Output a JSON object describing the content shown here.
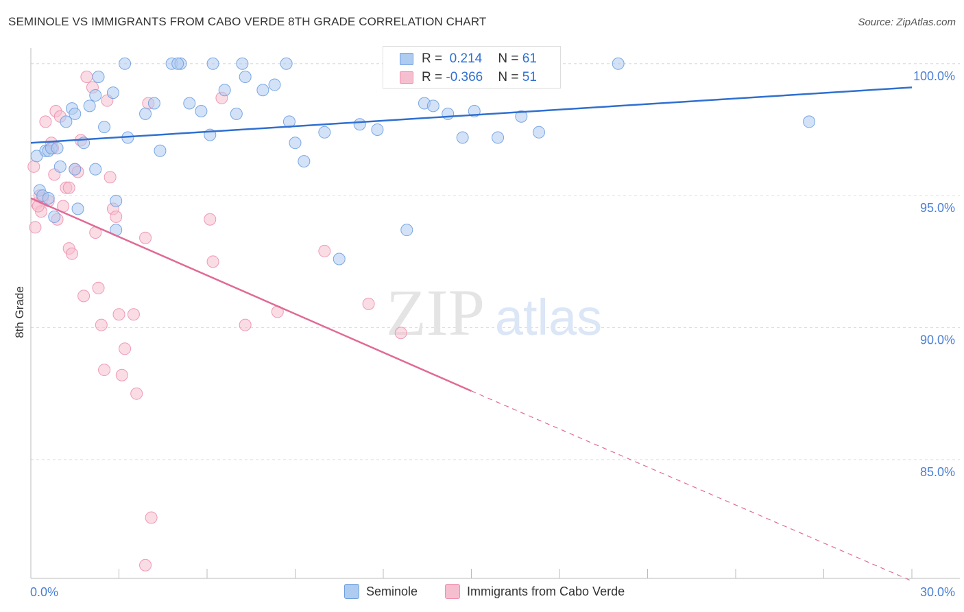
{
  "title": "SEMINOLE VS IMMIGRANTS FROM CABO VERDE 8TH GRADE CORRELATION CHART",
  "source": "Source: ZipAtlas.com",
  "watermark": {
    "zip": "ZIP",
    "atlas": "atlas"
  },
  "colors": {
    "seminole_fill": "#aecbf0",
    "seminole_stroke": "#6d9fe0",
    "seminole_line": "#2f6fd0",
    "cabo_fill": "#f6bfd0",
    "cabo_stroke": "#ee8fae",
    "cabo_line": "#e06a95",
    "axis_text": "#4a7fd4",
    "grid": "#dddddd"
  },
  "legend": {
    "rows": [
      {
        "series": "seminole",
        "r_label": "R = ",
        "r_value": " 0.214",
        "n_label": "N = ",
        "n_value": "61"
      },
      {
        "series": "cabo",
        "r_label": "R = ",
        "r_value": "-0.366",
        "n_label": "N = ",
        "n_value": "51"
      }
    ]
  },
  "chart_data": {
    "type": "scatter",
    "title": "SEMINOLE VS IMMIGRANTS FROM CABO VERDE 8TH GRADE CORRELATION CHART",
    "xlabel": "",
    "ylabel": "8th Grade",
    "xlim": [
      0,
      30
    ],
    "ylim": [
      80.5,
      100.8
    ],
    "x_tick_labels": [
      "0.0%",
      "30.0%"
    ],
    "y_ticks": [
      85,
      90,
      95,
      100
    ],
    "y_tick_labels": [
      "85.0%",
      "90.0%",
      "95.0%",
      "100.0%"
    ],
    "grid": true,
    "legend_position": "top-center",
    "series": [
      {
        "name": "Seminole",
        "trend": {
          "x": [
            0,
            30
          ],
          "y": [
            97.0,
            99.1
          ],
          "style": "solid"
        },
        "points": [
          [
            0.2,
            96.5
          ],
          [
            0.3,
            95.2
          ],
          [
            0.4,
            95.0
          ],
          [
            0.5,
            96.7
          ],
          [
            0.6,
            96.7
          ],
          [
            0.7,
            96.8
          ],
          [
            0.8,
            94.2
          ],
          [
            0.9,
            96.8
          ],
          [
            1.0,
            96.1
          ],
          [
            1.2,
            97.8
          ],
          [
            1.4,
            98.3
          ],
          [
            1.5,
            96.0
          ],
          [
            1.6,
            94.5
          ],
          [
            1.8,
            97.0
          ],
          [
            2.0,
            98.4
          ],
          [
            2.2,
            98.8
          ],
          [
            2.3,
            99.5
          ],
          [
            2.5,
            97.6
          ],
          [
            2.8,
            98.9
          ],
          [
            2.9,
            93.7
          ],
          [
            3.3,
            97.2
          ],
          [
            3.9,
            98.1
          ],
          [
            4.2,
            98.5
          ],
          [
            4.4,
            96.7
          ],
          [
            4.8,
            100.0
          ],
          [
            5.1,
            100.0
          ],
          [
            5.4,
            98.5
          ],
          [
            5.8,
            98.2
          ],
          [
            6.1,
            97.3
          ],
          [
            6.2,
            100.0
          ],
          [
            6.6,
            99.0
          ],
          [
            7.0,
            98.1
          ],
          [
            7.3,
            99.5
          ],
          [
            7.9,
            99.0
          ],
          [
            8.3,
            99.2
          ],
          [
            8.7,
            100.0
          ],
          [
            8.8,
            97.8
          ],
          [
            9.0,
            97.0
          ],
          [
            9.3,
            96.3
          ],
          [
            10.0,
            97.4
          ],
          [
            10.5,
            92.6
          ],
          [
            11.2,
            97.7
          ],
          [
            11.8,
            97.5
          ],
          [
            12.8,
            93.7
          ],
          [
            13.4,
            98.5
          ],
          [
            13.7,
            98.4
          ],
          [
            14.7,
            97.2
          ],
          [
            15.1,
            98.2
          ],
          [
            15.9,
            97.2
          ],
          [
            16.7,
            98.0
          ],
          [
            17.3,
            97.4
          ],
          [
            20.0,
            100.0
          ],
          [
            26.5,
            97.8
          ],
          [
            2.9,
            94.8
          ],
          [
            1.5,
            98.1
          ],
          [
            0.6,
            94.9
          ],
          [
            3.2,
            100.0
          ],
          [
            5.0,
            100.0
          ],
          [
            7.2,
            100.0
          ],
          [
            2.2,
            96.0
          ],
          [
            14.2,
            98.1
          ]
        ]
      },
      {
        "name": "Immigrants from Cabo Verde",
        "trend": {
          "x": [
            0,
            15,
            30
          ],
          "y": [
            94.9,
            87.6,
            80.4
          ],
          "style": "solid-then-dashed"
        },
        "points": [
          [
            0.1,
            96.1
          ],
          [
            0.15,
            93.8
          ],
          [
            0.2,
            94.7
          ],
          [
            0.3,
            95.0
          ],
          [
            0.35,
            94.4
          ],
          [
            0.4,
            94.9
          ],
          [
            0.5,
            97.8
          ],
          [
            0.6,
            94.8
          ],
          [
            0.7,
            97.0
          ],
          [
            0.75,
            96.8
          ],
          [
            0.8,
            95.8
          ],
          [
            0.85,
            98.2
          ],
          [
            0.9,
            94.1
          ],
          [
            1.0,
            98.0
          ],
          [
            1.1,
            94.6
          ],
          [
            1.2,
            95.3
          ],
          [
            1.3,
            93.0
          ],
          [
            1.4,
            92.8
          ],
          [
            1.5,
            96.0
          ],
          [
            1.6,
            95.9
          ],
          [
            1.7,
            97.1
          ],
          [
            1.8,
            91.2
          ],
          [
            1.9,
            99.5
          ],
          [
            2.1,
            99.1
          ],
          [
            2.2,
            93.6
          ],
          [
            2.3,
            91.5
          ],
          [
            2.4,
            90.1
          ],
          [
            2.5,
            88.4
          ],
          [
            2.6,
            98.6
          ],
          [
            2.7,
            95.7
          ],
          [
            2.8,
            94.5
          ],
          [
            2.9,
            94.2
          ],
          [
            3.0,
            90.5
          ],
          [
            3.1,
            88.2
          ],
          [
            3.2,
            89.2
          ],
          [
            3.5,
            90.5
          ],
          [
            3.6,
            87.5
          ],
          [
            3.9,
            81.0
          ],
          [
            3.9,
            93.4
          ],
          [
            4.0,
            98.5
          ],
          [
            4.1,
            82.8
          ],
          [
            6.1,
            94.1
          ],
          [
            6.2,
            92.5
          ],
          [
            6.5,
            98.7
          ],
          [
            7.3,
            90.1
          ],
          [
            8.4,
            90.6
          ],
          [
            10.0,
            92.9
          ],
          [
            11.5,
            90.9
          ],
          [
            12.6,
            89.8
          ],
          [
            0.25,
            94.6
          ],
          [
            1.3,
            95.3
          ]
        ]
      }
    ]
  },
  "bottom_legend": [
    {
      "series": "seminole",
      "label": "Seminole"
    },
    {
      "series": "cabo",
      "label": "Immigrants from Cabo Verde"
    }
  ]
}
